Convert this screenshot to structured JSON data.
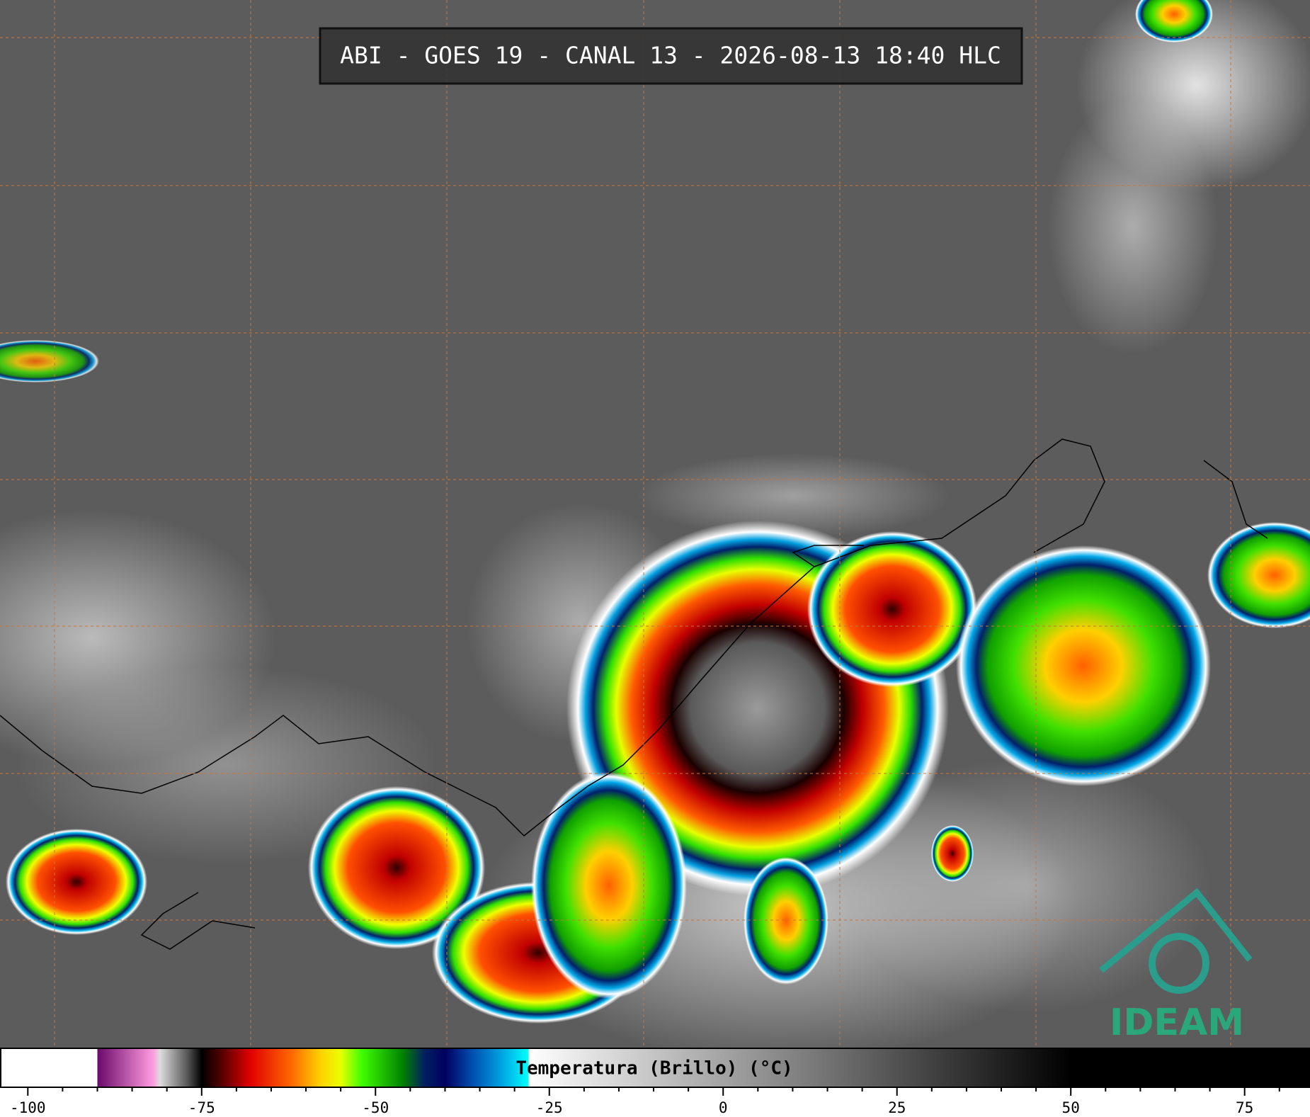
{
  "header": {
    "title": "ABI - GOES 19 - CANAL 13 - 2026-08-13 18:40 HLC"
  },
  "logo": {
    "text": "IDEAM"
  },
  "colorbar": {
    "label": "Temperatura (Brillo) (°C)",
    "lim": [
      -103.9,
      84.3
    ],
    "ticks": [
      -100,
      -75,
      -50,
      -25,
      0,
      25,
      50,
      75
    ],
    "minor_ticks": [
      -95,
      -90,
      -85,
      -80,
      -70,
      -65,
      -60,
      -55,
      -45,
      -40,
      -35,
      -30,
      -20,
      -15,
      -10,
      -5,
      5,
      10,
      15,
      20,
      30,
      35,
      40,
      45,
      55,
      60,
      65,
      70,
      80
    ],
    "stops": [
      {
        "value": -103.9,
        "color": "#ffffff"
      },
      {
        "value": -90,
        "color": "#ffffff"
      },
      {
        "value": -90,
        "color": "#6a0a6a"
      },
      {
        "value": -82,
        "color": "#ff9be0"
      },
      {
        "value": -81,
        "color": "#dddddd"
      },
      {
        "value": -77,
        "color": "#555555"
      },
      {
        "value": -75,
        "color": "#000000"
      },
      {
        "value": -72,
        "color": "#5a0000"
      },
      {
        "value": -68,
        "color": "#e00000"
      },
      {
        "value": -62,
        "color": "#ff6a00"
      },
      {
        "value": -58,
        "color": "#ffd000"
      },
      {
        "value": -55,
        "color": "#e8ff00"
      },
      {
        "value": -52,
        "color": "#40ff00"
      },
      {
        "value": -46,
        "color": "#008000"
      },
      {
        "value": -43,
        "color": "#002060"
      },
      {
        "value": -40,
        "color": "#000060"
      },
      {
        "value": -36,
        "color": "#0050b0"
      },
      {
        "value": -32,
        "color": "#00a0e0"
      },
      {
        "value": -28,
        "color": "#00ffff"
      },
      {
        "value": -28,
        "color": "#ffffff"
      },
      {
        "value": 50,
        "color": "#000000"
      },
      {
        "value": 84.3,
        "color": "#000000"
      }
    ]
  }
}
